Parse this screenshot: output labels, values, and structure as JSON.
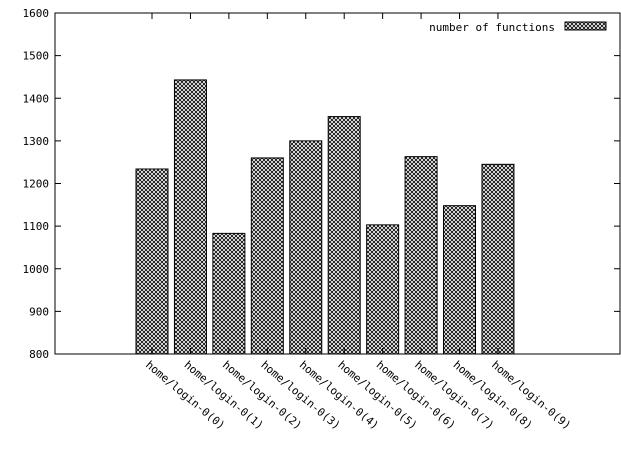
{
  "chart_data": {
    "type": "bar",
    "categories": [
      "home/login-0(0)",
      "home/login-0(1)",
      "home/login-0(2)",
      "home/login-0(3)",
      "home/login-0(4)",
      "home/login-0(5)",
      "home/login-0(6)",
      "home/login-0(7)",
      "home/login-0(8)",
      "home/login-0(9)"
    ],
    "series": [
      {
        "name": "number of functions",
        "values": [
          1234,
          1443,
          1083,
          1260,
          1300,
          1357,
          1103,
          1263,
          1148,
          1245
        ]
      }
    ],
    "title": "",
    "xlabel": "",
    "ylabel": "",
    "ylim": [
      800,
      1600
    ],
    "yticks": [
      800,
      900,
      1000,
      1100,
      1200,
      1300,
      1400,
      1500,
      1600
    ],
    "grid": false,
    "legend_position": "top-right",
    "bar_pattern": "crosshatch",
    "colors": {
      "axis": "#000000",
      "bar_fill": "#ffffff",
      "hatch": "#000000"
    }
  }
}
